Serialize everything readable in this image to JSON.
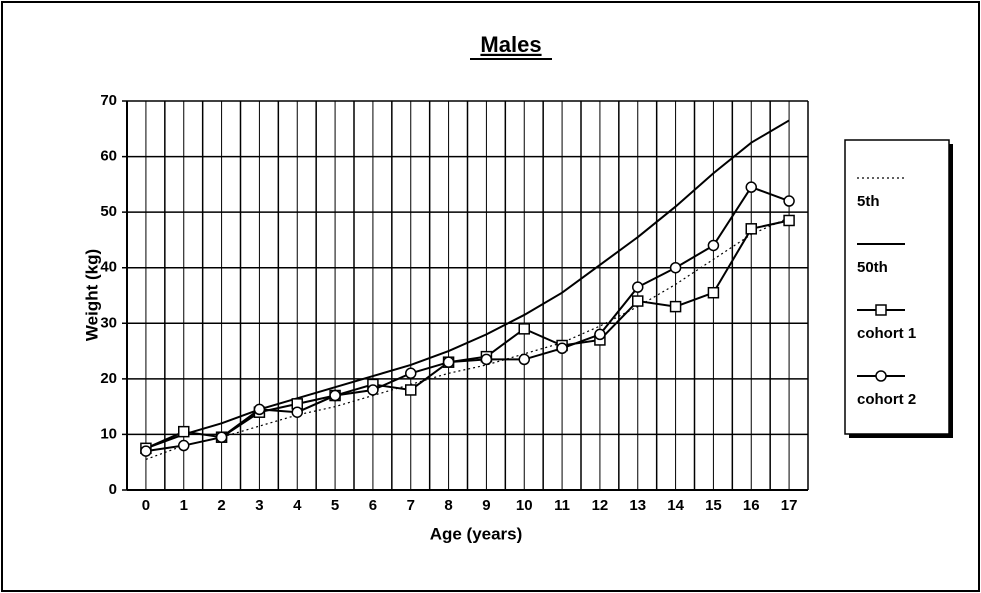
{
  "chart_data": {
    "type": "line",
    "title": "Males",
    "x_label": "Age (years)",
    "y_label": "Weight (kg)",
    "categories": [
      "0",
      "1",
      "2",
      "3",
      "4",
      "5",
      "6",
      "7",
      "8",
      "9",
      "10",
      "11",
      "12",
      "13",
      "14",
      "15",
      "16",
      "17"
    ],
    "ylim": [
      0,
      70
    ],
    "yticks": [
      0,
      10,
      20,
      30,
      40,
      50,
      60,
      70
    ],
    "grid": true,
    "legend": "right",
    "series": [
      {
        "name": "5th",
        "color": "#000000",
        "style": "dotted",
        "marker": "none",
        "values": [
          5.5,
          8,
          9.5,
          11.5,
          13.5,
          15,
          17,
          19,
          21,
          22.5,
          24.5,
          26.5,
          29.5,
          33,
          37,
          41.5,
          46,
          49
        ]
      },
      {
        "name": "50th",
        "color": "#000000",
        "style": "solid",
        "marker": "none",
        "values": [
          7.5,
          10,
          12,
          14.5,
          16.5,
          18.5,
          20.5,
          22.5,
          25,
          28,
          31.5,
          35.5,
          40.5,
          45.5,
          51,
          57,
          62.5,
          66.5
        ]
      },
      {
        "name": "cohort 1",
        "color": "#000000",
        "style": "solid",
        "marker": "square",
        "values": [
          7.5,
          10.5,
          9.5,
          14,
          15.5,
          17,
          19,
          18,
          23,
          24,
          29,
          26,
          27,
          34,
          33,
          35.5,
          47,
          48.5
        ]
      },
      {
        "name": "cohort 2",
        "color": "#000000",
        "style": "solid",
        "marker": "circle",
        "values": [
          7,
          8,
          9.5,
          14.5,
          14,
          17,
          18,
          21,
          23,
          23.5,
          23.5,
          25.5,
          28,
          36.5,
          40,
          44,
          54.5,
          52
        ]
      }
    ]
  }
}
